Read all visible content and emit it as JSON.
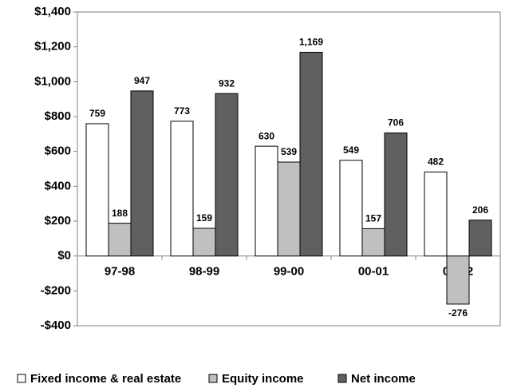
{
  "chart_data": {
    "type": "bar",
    "categories": [
      "97-98",
      "98-99",
      "99-00",
      "00-01",
      "01-02"
    ],
    "series": [
      {
        "name": "Fixed income & real estate",
        "color": "#ffffff",
        "values": [
          759,
          773,
          630,
          549,
          482
        ]
      },
      {
        "name": "Equity income",
        "color": "#c0c0c0",
        "values": [
          188,
          159,
          539,
          157,
          -276
        ]
      },
      {
        "name": "Net income",
        "color": "#606060",
        "values": [
          947,
          932,
          1169,
          706,
          206
        ],
        "value_labels": [
          "947",
          "932",
          "1,169",
          "706",
          "206"
        ]
      }
    ],
    "ylim": [
      -400,
      1400
    ],
    "yticks": [
      {
        "value": -400,
        "label": "-$400"
      },
      {
        "value": -200,
        "label": "-$200"
      },
      {
        "value": 0,
        "label": "$0"
      },
      {
        "value": 200,
        "label": "$200"
      },
      {
        "value": 400,
        "label": "$400"
      },
      {
        "value": 600,
        "label": "$600"
      },
      {
        "value": 800,
        "label": "$800"
      },
      {
        "value": 1000,
        "label": "$1,000"
      },
      {
        "value": 1200,
        "label": "$1,200"
      },
      {
        "value": 1400,
        "label": "$1,400"
      }
    ],
    "legend": "bottom"
  }
}
